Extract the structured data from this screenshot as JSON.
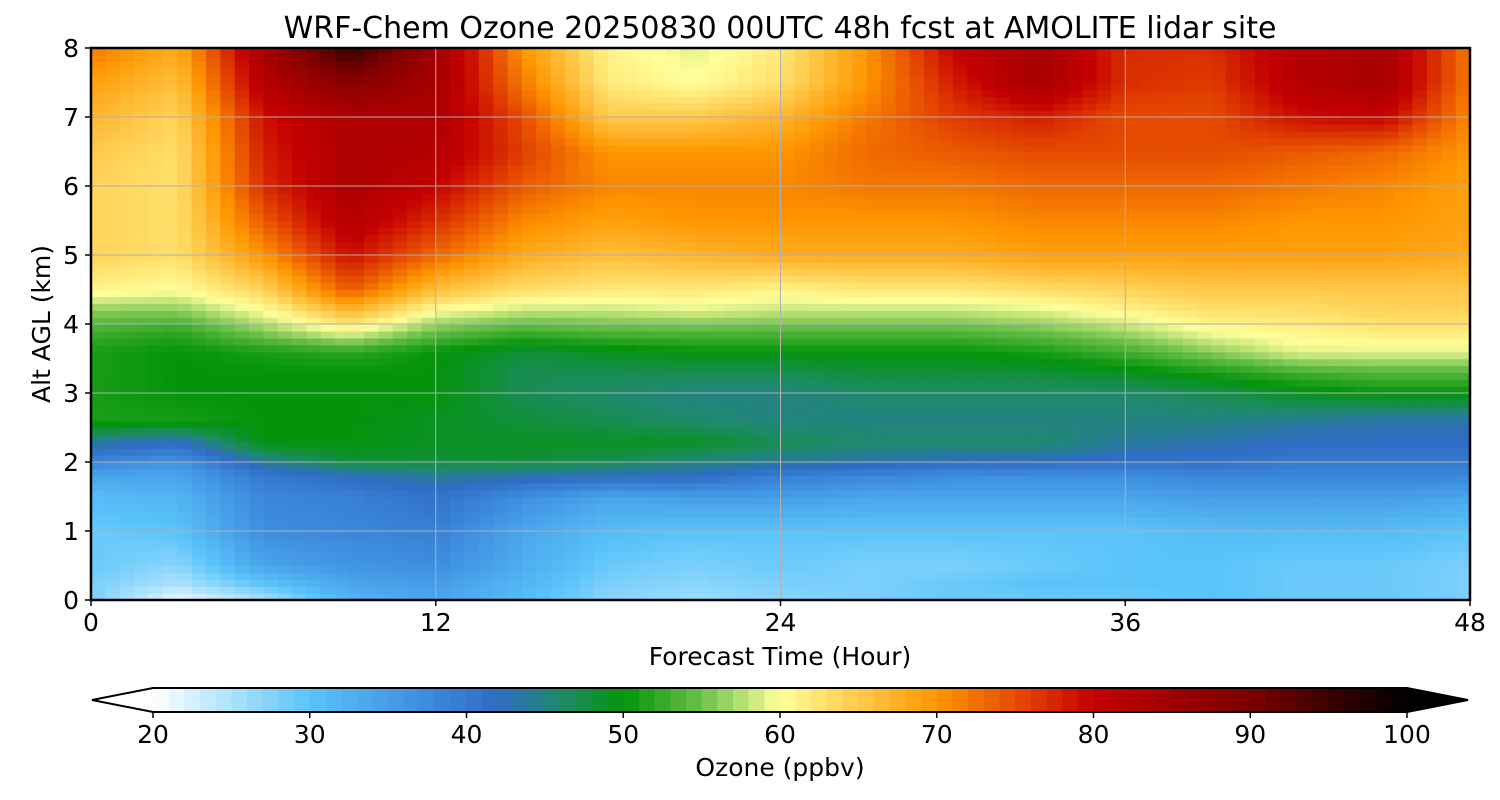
{
  "chart_data": {
    "type": "heatmap",
    "title": "WRF-Chem Ozone  20250830 00UTC 48h fcst at AMOLITE lidar site",
    "xlabel": "Forecast Time (Hour)",
    "ylabel": "Alt AGL (km)",
    "xlim": [
      0,
      48
    ],
    "ylim": [
      0,
      8
    ],
    "xticks": [
      "0",
      "12",
      "24",
      "36",
      "48"
    ],
    "yticks": [
      "0",
      "1",
      "2",
      "3",
      "4",
      "5",
      "6",
      "7",
      "8"
    ],
    "grid": true,
    "x": [
      0,
      3,
      6,
      9,
      12,
      15,
      18,
      21,
      24,
      27,
      30,
      33,
      36,
      39,
      42,
      45,
      48
    ],
    "y": [
      0,
      0.25,
      0.5,
      1,
      1.5,
      1.8,
      2,
      2.3,
      2.6,
      3,
      3.3,
      3.6,
      3.9,
      4.2,
      4.5,
      5,
      5.5,
      6,
      6.5,
      7,
      7.5,
      8
    ],
    "z": [
      [
        28,
        21,
        25,
        32,
        34,
        31,
        27,
        26,
        27,
        28,
        29,
        29,
        29,
        30,
        29,
        29,
        28
      ],
      [
        28,
        25,
        30,
        34,
        35,
        32,
        28,
        27,
        28,
        28,
        29,
        30,
        30,
        30,
        29,
        29,
        28
      ],
      [
        29,
        27,
        34,
        36,
        37,
        33,
        29,
        28,
        29,
        28,
        28,
        29,
        30,
        30,
        29,
        29,
        28
      ],
      [
        29,
        30,
        37,
        38,
        39,
        34,
        31,
        30,
        30,
        30,
        30,
        30,
        30,
        31,
        31,
        31,
        30
      ],
      [
        31,
        32,
        38,
        39,
        41,
        37,
        34,
        35,
        35,
        34,
        34,
        34,
        34,
        35,
        35,
        35,
        34
      ],
      [
        34,
        34,
        40,
        42,
        44,
        43,
        42,
        42,
        39,
        38,
        37,
        37,
        37,
        38,
        38,
        38,
        38
      ],
      [
        38,
        36,
        44,
        48,
        48,
        48,
        47,
        45,
        44,
        43,
        42,
        42,
        41,
        41,
        40,
        40,
        40
      ],
      [
        44,
        42,
        50,
        50,
        49,
        49,
        49,
        49,
        47,
        46,
        46,
        46,
        44,
        43,
        42,
        42,
        42
      ],
      [
        51,
        51,
        50,
        50,
        49,
        48,
        47,
        46,
        45,
        45,
        45,
        45,
        45,
        45,
        44,
        43,
        43
      ],
      [
        51,
        50,
        50,
        50,
        50,
        47,
        46,
        45,
        45,
        46,
        46,
        46,
        46,
        47,
        49,
        50,
        50
      ],
      [
        51,
        50,
        50,
        50,
        50,
        47,
        47,
        47,
        47,
        48,
        48,
        48,
        49,
        51,
        53,
        54,
        54
      ],
      [
        51,
        50,
        51,
        52,
        50,
        48,
        49,
        50,
        50,
        50,
        50,
        51,
        53,
        56,
        59,
        59,
        59
      ],
      [
        53,
        52,
        56,
        60,
        55,
        53,
        54,
        54,
        54,
        54,
        54,
        55,
        57,
        60,
        61,
        62,
        62
      ],
      [
        56,
        56,
        60,
        67,
        60,
        58,
        58,
        59,
        58,
        58,
        58,
        59,
        61,
        63,
        63,
        64,
        64
      ],
      [
        61,
        60,
        64,
        74,
        66,
        63,
        62,
        62,
        61,
        62,
        62,
        63,
        64,
        65,
        65,
        65,
        65
      ],
      [
        64,
        63,
        70,
        79,
        73,
        68,
        66,
        67,
        68,
        68,
        68,
        69,
        69,
        69,
        69,
        69,
        68
      ],
      [
        64,
        63,
        74,
        82,
        77,
        71,
        69,
        70,
        70,
        70,
        70,
        71,
        71,
        71,
        70,
        70,
        69
      ],
      [
        64,
        63,
        77,
        83,
        80,
        74,
        71,
        71,
        71,
        72,
        72,
        73,
        73,
        73,
        72,
        71,
        69
      ],
      [
        65,
        63,
        78,
        83,
        82,
        76,
        70,
        70,
        70,
        73,
        74,
        75,
        75,
        75,
        74,
        73,
        70
      ],
      [
        67,
        64,
        79,
        83,
        83,
        75,
        65,
        65,
        67,
        72,
        76,
        78,
        75,
        75,
        79,
        80,
        71
      ],
      [
        69,
        66,
        82,
        88,
        84,
        72,
        62,
        60,
        63,
        70,
        78,
        84,
        77,
        76,
        82,
        84,
        72
      ],
      [
        72,
        68,
        84,
        96,
        85,
        70,
        61,
        59,
        62,
        70,
        80,
        84,
        77,
        77,
        82,
        84,
        72
      ]
    ],
    "colorbar": {
      "label": "Ozone  (ppbv)",
      "min": 20,
      "max": 100,
      "extend": "both",
      "ticks": [
        "20",
        "30",
        "40",
        "50",
        "60",
        "70",
        "80",
        "90",
        "100"
      ],
      "stops": [
        [
          20,
          "#ffffff"
        ],
        [
          30,
          "#5ac4fa"
        ],
        [
          37,
          "#3e8ee0"
        ],
        [
          42,
          "#2f6cc4"
        ],
        [
          46,
          "#1e8a6a"
        ],
        [
          50,
          "#03940b"
        ],
        [
          55,
          "#6bc04a"
        ],
        [
          60,
          "#ffff9a"
        ],
        [
          64,
          "#ffd45a"
        ],
        [
          70,
          "#ff9600"
        ],
        [
          76,
          "#e03c00"
        ],
        [
          80,
          "#c40000"
        ],
        [
          90,
          "#7a0000"
        ],
        [
          100,
          "#000000"
        ]
      ]
    }
  }
}
